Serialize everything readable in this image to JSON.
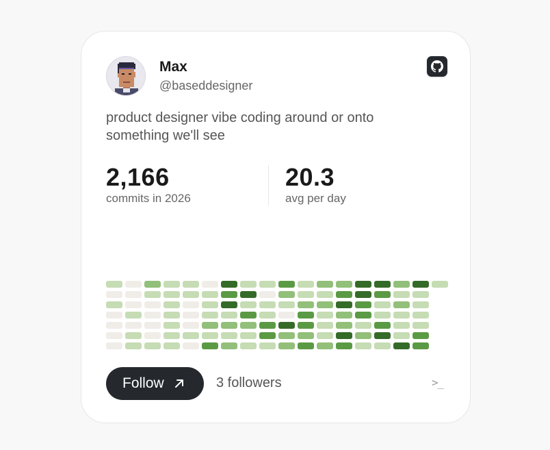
{
  "profile": {
    "name": "Max",
    "handle": "@baseddesigner",
    "bio": "product designer vibe coding around or onto something we'll see",
    "avatar_icon": "pixel-art-avatar-icon",
    "github_icon": "github-icon"
  },
  "stats": [
    {
      "value": "2,166",
      "label": "commits in 2026"
    },
    {
      "value": "20.3",
      "label": "avg per day"
    }
  ],
  "contribution_graph": {
    "colors": [
      "#f0ede8",
      "#c6dcb4",
      "#92bf79",
      "#5b9a44",
      "#356b28"
    ],
    "weeks": [
      [
        1,
        0,
        1,
        0,
        0,
        0,
        0
      ],
      [
        0,
        0,
        0,
        1,
        0,
        1,
        1
      ],
      [
        2,
        1,
        0,
        0,
        0,
        0,
        1
      ],
      [
        1,
        1,
        1,
        1,
        1,
        1,
        1
      ],
      [
        1,
        1,
        0,
        0,
        0,
        1,
        0
      ],
      [
        0,
        1,
        1,
        1,
        2,
        1,
        3
      ],
      [
        4,
        3,
        4,
        1,
        2,
        1,
        2
      ],
      [
        1,
        4,
        1,
        3,
        2,
        1,
        1
      ],
      [
        1,
        0,
        1,
        1,
        3,
        3,
        1
      ],
      [
        3,
        2,
        1,
        0,
        4,
        2,
        2
      ],
      [
        1,
        1,
        2,
        3,
        3,
        2,
        3
      ],
      [
        2,
        1,
        2,
        1,
        1,
        1,
        2
      ],
      [
        2,
        3,
        4,
        2,
        2,
        4,
        3
      ],
      [
        4,
        4,
        3,
        3,
        1,
        2,
        1
      ],
      [
        4,
        3,
        1,
        1,
        3,
        4,
        1
      ],
      [
        2,
        1,
        2,
        1,
        1,
        1,
        4
      ],
      [
        4,
        1,
        1,
        1,
        1,
        3,
        3
      ],
      [
        1
      ]
    ]
  },
  "footer": {
    "follow_label": "Follow",
    "followers_label": "3 followers",
    "terminal_glyph": ">_"
  },
  "colors": {
    "page_bg": "#f8f8f8",
    "card_bg": "#ffffff",
    "button_bg": "#25292e",
    "text_primary": "#1a1a1a",
    "text_secondary": "#666666"
  }
}
